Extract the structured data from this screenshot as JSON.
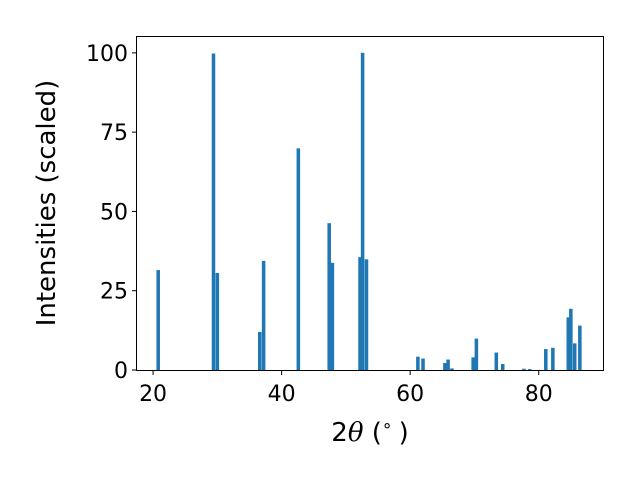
{
  "chart_data": {
    "type": "bar",
    "xlabel_prefix": "2",
    "xlabel_symbol": "θ",
    "xlabel_suffix": " (",
    "xlabel_degree": "∘",
    "xlabel_close": ")",
    "ylabel": "Intensities (scaled)",
    "xlim": [
      17.5,
      90
    ],
    "ylim": [
      0,
      105
    ],
    "xticks": [
      20,
      40,
      60,
      80
    ],
    "yticks": [
      0,
      25,
      50,
      75,
      100
    ],
    "grid": false,
    "bar_width": 0.55,
    "color": "#1f77b4",
    "x": [
      20.8,
      29.4,
      30.0,
      36.6,
      37.2,
      42.6,
      47.4,
      47.9,
      52.2,
      52.6,
      53.2,
      61.2,
      62.0,
      65.4,
      65.9,
      66.5,
      69.8,
      70.3,
      73.4,
      74.4,
      77.7,
      78.6,
      81.1,
      82.2,
      84.6,
      85.0,
      85.6,
      86.4
    ],
    "values": [
      31.5,
      99.8,
      30.6,
      12.0,
      34.4,
      69.9,
      46.3,
      33.8,
      35.6,
      100.0,
      34.9,
      4.2,
      3.6,
      2.2,
      3.3,
      0.5,
      4.0,
      9.9,
      5.5,
      1.9,
      0.4,
      0.3,
      6.6,
      7.0,
      16.6,
      19.3,
      8.4,
      14.0
    ]
  }
}
